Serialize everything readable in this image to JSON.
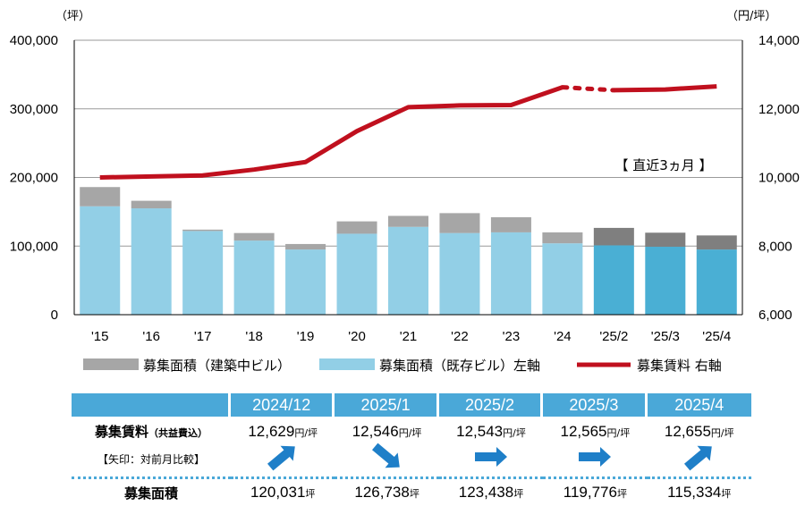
{
  "chart_data": {
    "type": "bar+line",
    "categories": [
      "'15",
      "'16",
      "'17",
      "'18",
      "'19",
      "'20",
      "'21",
      "'22",
      "'23",
      "'24",
      "'25/2",
      "'25/3",
      "'25/4"
    ],
    "series": [
      {
        "name": "募集面積（既存ビル）左軸",
        "type": "bar",
        "axis": "left",
        "color": "#92cfe6",
        "recent_color": "#4aafd4",
        "values": [
          158000,
          155000,
          122000,
          108000,
          95000,
          118000,
          128000,
          119000,
          120000,
          104000,
          101000,
          99000,
          95000
        ]
      },
      {
        "name": "募集面積（建築中ビル）",
        "type": "bar",
        "axis": "left",
        "color": "#a6a6a6",
        "recent_color": "#7f7f7f",
        "values": [
          28000,
          11000,
          2000,
          11000,
          8000,
          18000,
          16000,
          29000,
          22000,
          16000,
          25500,
          20500,
          20500
        ]
      },
      {
        "name": "募集賃料 右軸",
        "type": "line",
        "axis": "right",
        "color": "#c0101e",
        "values": [
          10000,
          10030,
          10060,
          10230,
          10450,
          11350,
          12050,
          12100,
          12110,
          12629,
          12543,
          12565,
          12655
        ]
      }
    ],
    "left_axis": {
      "unit": "（坪）",
      "min": 0,
      "max": 400000,
      "ticks": [
        "0",
        "100,000",
        "200,000",
        "300,000",
        "400,000"
      ]
    },
    "right_axis": {
      "unit": "（円/坪）",
      "min": 6000,
      "max": 14000,
      "ticks": [
        "6,000",
        "8,000",
        "10,000",
        "12,000",
        "14,000"
      ]
    },
    "recent_note": "【 直近3ヵ月 】",
    "recent_start_index": 10,
    "grid": true,
    "legend_position": "bottom"
  },
  "legend": {
    "construction": "募集面積（建築中ビル）",
    "existing": "募集面積（既存ビル）左軸",
    "rent": "募集賃料 右軸"
  },
  "table": {
    "rent_label": "募集賃料",
    "rent_sub": "（共益費込）",
    "arrow_label": "【矢印：対前月比較】",
    "area_label": "募集面積",
    "rent_unit": "円/坪",
    "area_unit": "坪",
    "columns": [
      {
        "month": "2024/12",
        "rent": "12,629",
        "area": "120,031",
        "arrow": "up"
      },
      {
        "month": "2025/1",
        "rent": "12,546",
        "area": "126,738",
        "arrow": "down"
      },
      {
        "month": "2025/2",
        "rent": "12,543",
        "area": "123,438",
        "arrow": "flat"
      },
      {
        "month": "2025/3",
        "rent": "12,565",
        "area": "119,776",
        "arrow": "flat"
      },
      {
        "month": "2025/4",
        "rent": "12,655",
        "area": "115,334",
        "arrow": "up"
      }
    ],
    "arrow_color": "#1f7fc8"
  }
}
